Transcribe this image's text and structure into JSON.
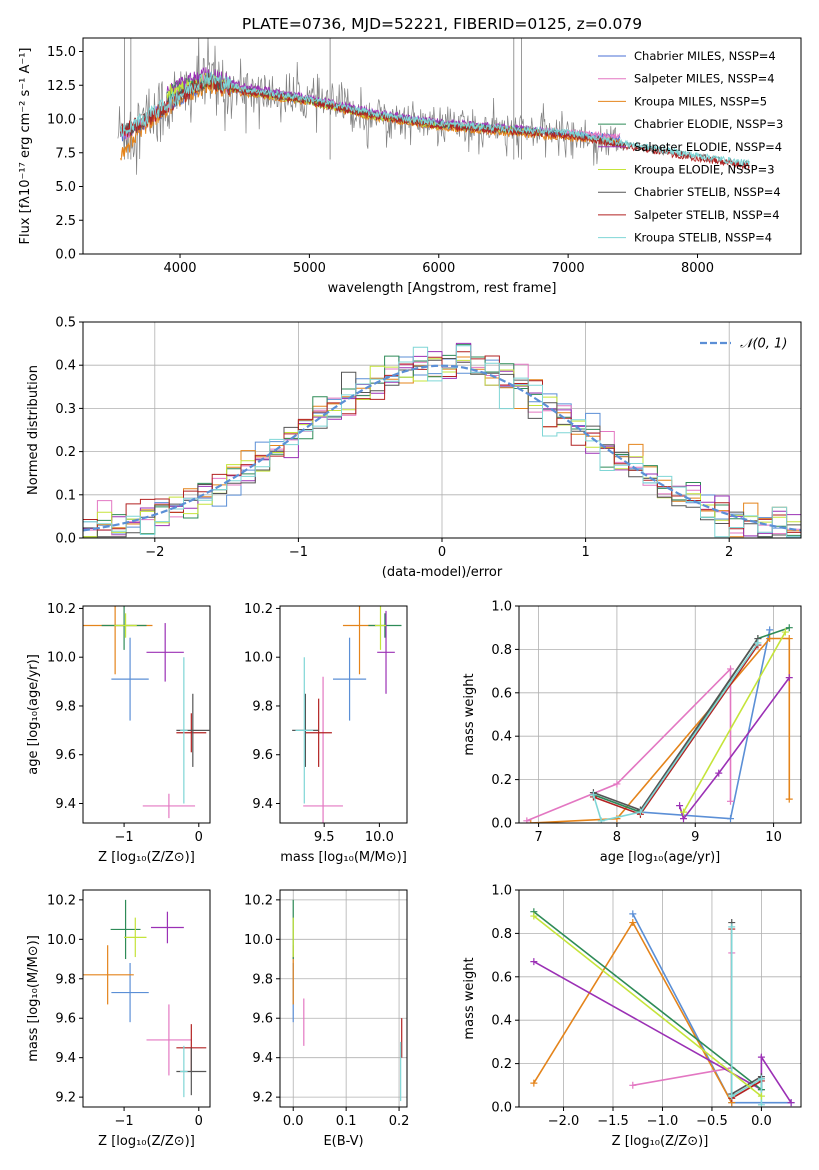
{
  "chart_data": [
    {
      "type": "line",
      "title": "PLATE=0736, MJD=52221, FIBERID=0125, z=0.079",
      "xlabel": "wavelength [Angstrom, rest frame]",
      "ylabel": "Flux [fλ10⁻¹⁷ erg cm⁻² s⁻¹ A⁻¹]",
      "xlim": [
        3250,
        8800
      ],
      "ylim": [
        0,
        16
      ],
      "xticks": [
        4000,
        5000,
        6000,
        7000,
        8000
      ],
      "yticks": [
        0.0,
        2.5,
        5.0,
        7.5,
        10.0,
        12.5,
        15.0
      ],
      "grid": false,
      "legend_position": "top-right",
      "series": [
        {
          "name": "Chabrier MILES, NSSP=4",
          "color": "#4a6fd6",
          "x": [
            3540,
            3700,
            4000,
            4200,
            4500,
            5000,
            5500,
            6000,
            6500,
            7000,
            7400
          ],
          "y": [
            8.8,
            9.5,
            11.6,
            12.8,
            12.0,
            11.3,
            10.2,
            9.5,
            9.2,
            8.9,
            8.6
          ]
        },
        {
          "name": "Salpeter MILES, NSSP=4",
          "color": "#e377c2",
          "x": [
            3540,
            3700,
            4000,
            4200,
            4500,
            5000,
            5500,
            6000,
            6500,
            7000,
            7400
          ],
          "y": [
            8.8,
            9.6,
            11.8,
            13.0,
            12.2,
            11.5,
            10.4,
            9.7,
            9.3,
            9.0,
            8.7
          ]
        },
        {
          "name": "Kroupa MILES, NSSP=5",
          "color": "#e4841b",
          "x": [
            3540,
            3700,
            4000,
            4200,
            4500,
            5000,
            5500,
            6000,
            6500,
            7000,
            7400
          ],
          "y": [
            7.2,
            9.2,
            11.5,
            12.5,
            11.9,
            11.2,
            10.1,
            9.4,
            9.0,
            8.6,
            8.3
          ]
        },
        {
          "name": "Chabrier ELODIE, NSSP=3",
          "color": "#2e8b57",
          "x": [
            3900,
            4200,
            4500,
            5000,
            5500,
            6000,
            6500,
            6800
          ],
          "y": [
            12.0,
            12.9,
            12.1,
            11.4,
            10.3,
            9.6,
            9.3,
            9.1
          ]
        },
        {
          "name": "Salpeter ELODIE, NSSP=4",
          "color": "#9b30b5",
          "x": [
            3900,
            4200,
            4500,
            5000,
            5500,
            6000,
            6500,
            6800
          ],
          "y": [
            12.1,
            13.3,
            12.4,
            11.6,
            10.5,
            9.8,
            9.4,
            9.2
          ]
        },
        {
          "name": "Kroupa ELODIE, NSSP=3",
          "color": "#c5e43a",
          "x": [
            3900,
            4200,
            4500,
            5000,
            5500,
            6000,
            6500,
            6800
          ],
          "y": [
            11.9,
            12.9,
            12.0,
            11.3,
            10.2,
            9.5,
            9.2,
            9.0
          ]
        },
        {
          "name": "Chabrier STELIB, NSSP=4",
          "color": "#555555",
          "x": [
            3540,
            3700,
            4000,
            4200,
            4500,
            5000,
            5500,
            6000,
            6500,
            7000,
            7500,
            8000,
            8400
          ],
          "y": [
            9.0,
            9.7,
            11.7,
            12.9,
            12.1,
            11.4,
            10.3,
            9.6,
            9.2,
            8.9,
            8.0,
            7.2,
            6.6
          ]
        },
        {
          "name": "Salpeter STELIB, NSSP=4",
          "color": "#b22222",
          "x": [
            3540,
            3700,
            4000,
            4200,
            4500,
            5000,
            5500,
            6000,
            6500,
            7000,
            7500,
            8000,
            8400
          ],
          "y": [
            9.0,
            9.7,
            11.6,
            12.8,
            12.0,
            11.3,
            10.2,
            9.5,
            9.1,
            8.8,
            7.9,
            7.1,
            6.5
          ]
        },
        {
          "name": "Kroupa STELIB, NSSP=4",
          "color": "#7fd6d6",
          "x": [
            3540,
            3700,
            4000,
            4200,
            4500,
            5000,
            5500,
            6000,
            6500,
            7000,
            7500,
            8000,
            8400
          ],
          "y": [
            9.1,
            9.8,
            11.8,
            13.1,
            12.2,
            11.5,
            10.4,
            9.7,
            9.3,
            9.0,
            8.1,
            7.3,
            6.7
          ]
        }
      ]
    },
    {
      "type": "line",
      "xlabel": "(data-model)/error",
      "ylabel": "Normed distribution",
      "xlim": [
        -2.5,
        2.5
      ],
      "ylim": [
        0,
        0.5
      ],
      "xticks": [
        -2,
        -1,
        0,
        1,
        2
      ],
      "yticks": [
        0.0,
        0.1,
        0.2,
        0.3,
        0.4,
        0.5
      ],
      "grid": true,
      "legend_position": "top-right",
      "legend": "𝒩(0, 1)",
      "normal_curve": {
        "mean": 0,
        "sigma": 1,
        "color": "#5b8fd6"
      }
    },
    {
      "type": "scatter",
      "xlabel": "Z [log₁₀(Z/Z⊙)]",
      "ylabel": "age  [log₁₀(age/yr)]",
      "xlim": [
        -1.55,
        0.15
      ],
      "ylim": [
        9.32,
        10.21
      ],
      "xticks": [
        -1,
        0
      ],
      "yticks": [
        9.4,
        9.6,
        9.8,
        10.0,
        10.2
      ],
      "points": [
        {
          "x": -0.92,
          "y": 9.91,
          "xerr": 0.25,
          "yerr": 0.17,
          "color": "#5b8fd6"
        },
        {
          "x": -1.12,
          "y": 10.13,
          "xerr": 0.5,
          "yerr": 0.2,
          "color": "#e4841b"
        },
        {
          "x": -1.0,
          "y": 10.13,
          "xerr": 0.3,
          "yerr": 0.1,
          "color": "#2e8b57"
        },
        {
          "x": -0.45,
          "y": 10.02,
          "xerr": 0.25,
          "yerr": 0.12,
          "color": "#9b30b5"
        },
        {
          "x": -0.4,
          "y": 9.39,
          "xerr": 0.35,
          "yerr": 0.05,
          "color": "#e377c2"
        },
        {
          "x": -0.1,
          "y": 9.69,
          "xerr": 0.2,
          "yerr": 0.08,
          "color": "#b22222"
        },
        {
          "x": -0.08,
          "y": 9.7,
          "xerr": 0.22,
          "yerr": 0.15,
          "color": "#555555"
        },
        {
          "x": -0.2,
          "y": 9.7,
          "xerr": 0.05,
          "yerr": 0.3,
          "color": "#7fd6d6"
        },
        {
          "x": -0.98,
          "y": 10.13,
          "xerr": 0.15,
          "yerr": 0.05,
          "color": "#c5e43a"
        }
      ]
    },
    {
      "type": "scatter",
      "xlabel": "mass [log₁₀(M/M⊙)]",
      "ylabel": "",
      "xlim": [
        9.1,
        10.25
      ],
      "ylim": [
        9.32,
        10.21
      ],
      "xticks": [
        9.5,
        10.0
      ],
      "yticks": [
        9.4,
        9.6,
        9.8,
        10.0,
        10.2
      ],
      "points": [
        {
          "x": 9.73,
          "y": 9.91,
          "xerr": 0.15,
          "yerr": 0.17,
          "color": "#5b8fd6"
        },
        {
          "x": 9.82,
          "y": 10.13,
          "xerr": 0.15,
          "yerr": 0.2,
          "color": "#e4841b"
        },
        {
          "x": 10.05,
          "y": 10.13,
          "xerr": 0.15,
          "yerr": 0.05,
          "color": "#2e8b57"
        },
        {
          "x": 10.06,
          "y": 10.02,
          "xerr": 0.08,
          "yerr": 0.17,
          "color": "#9b30b5"
        },
        {
          "x": 9.49,
          "y": 9.39,
          "xerr": 0.18,
          "yerr": 0.53,
          "color": "#e377c2"
        },
        {
          "x": 9.45,
          "y": 9.69,
          "xerr": 0.12,
          "yerr": 0.14,
          "color": "#b22222"
        },
        {
          "x": 9.33,
          "y": 9.7,
          "xerr": 0.12,
          "yerr": 0.15,
          "color": "#555555"
        },
        {
          "x": 9.32,
          "y": 9.7,
          "xerr": 0.08,
          "yerr": 0.3,
          "color": "#7fd6d6"
        },
        {
          "x": 10.01,
          "y": 10.13,
          "xerr": 0.05,
          "yerr": 0.1,
          "color": "#c5e43a"
        }
      ]
    },
    {
      "type": "line",
      "xlabel": "age  [log₁₀(age/yr)]",
      "ylabel": "mass weight",
      "xlim": [
        6.75,
        10.35
      ],
      "ylim": [
        0,
        1.0
      ],
      "xticks": [
        7,
        8,
        9,
        10
      ],
      "yticks": [
        0.0,
        0.2,
        0.4,
        0.6,
        0.8,
        1.0
      ],
      "grid": true,
      "series": [
        {
          "color": "#5b8fd6",
          "x": [
            7.7,
            8.3,
            9.45,
            9.95
          ],
          "y": [
            0.13,
            0.05,
            0.02,
            0.89
          ]
        },
        {
          "color": "#e4841b",
          "x": [
            6.9,
            8.0,
            9.95,
            10.2,
            10.2
          ],
          "y": [
            0.0,
            0.02,
            0.85,
            0.85,
            0.11
          ]
        },
        {
          "color": "#e377c2",
          "x": [
            6.85,
            8.0,
            9.45,
            9.45
          ],
          "y": [
            0.01,
            0.18,
            0.71,
            0.1
          ]
        },
        {
          "color": "#9b30b5",
          "x": [
            8.8,
            8.85,
            9.3,
            10.2
          ],
          "y": [
            0.08,
            0.02,
            0.23,
            0.67
          ]
        },
        {
          "color": "#2e8b57",
          "x": [
            7.7,
            8.3,
            9.8,
            10.2
          ],
          "y": [
            0.13,
            0.05,
            0.85,
            0.9
          ]
        },
        {
          "color": "#b22222",
          "x": [
            7.7,
            8.3,
            9.8
          ],
          "y": [
            0.12,
            0.04,
            0.82
          ]
        },
        {
          "color": "#555555",
          "x": [
            7.7,
            8.3,
            9.8
          ],
          "y": [
            0.14,
            0.06,
            0.85
          ]
        },
        {
          "color": "#7fd6d6",
          "x": [
            7.7,
            7.8,
            8.3,
            9.8
          ],
          "y": [
            0.13,
            0.01,
            0.05,
            0.83
          ]
        },
        {
          "color": "#c5e43a",
          "x": [
            8.85,
            10.15
          ],
          "y": [
            0.05,
            0.88
          ]
        }
      ]
    },
    {
      "type": "scatter",
      "xlabel": "Z [log₁₀(Z/Z⊙)]",
      "ylabel": "mass [log₁₀(M/M⊙)]",
      "xlim": [
        -1.55,
        0.15
      ],
      "ylim": [
        9.15,
        10.25
      ],
      "xticks": [
        -1,
        0
      ],
      "yticks": [
        9.2,
        9.4,
        9.6,
        9.8,
        10.0,
        10.2
      ],
      "points": [
        {
          "x": -0.92,
          "y": 9.73,
          "xerr": 0.25,
          "yerr": 0.15,
          "color": "#5b8fd6"
        },
        {
          "x": -1.22,
          "y": 9.82,
          "xerr": 0.35,
          "yerr": 0.15,
          "color": "#e4841b"
        },
        {
          "x": -0.98,
          "y": 10.05,
          "xerr": 0.2,
          "yerr": 0.15,
          "color": "#2e8b57"
        },
        {
          "x": -0.42,
          "y": 10.06,
          "xerr": 0.22,
          "yerr": 0.08,
          "color": "#9b30b5"
        },
        {
          "x": -0.4,
          "y": 9.49,
          "xerr": 0.3,
          "yerr": 0.18,
          "color": "#e377c2"
        },
        {
          "x": -0.1,
          "y": 9.45,
          "xerr": 0.2,
          "yerr": 0.12,
          "color": "#b22222"
        },
        {
          "x": -0.1,
          "y": 9.33,
          "xerr": 0.2,
          "yerr": 0.12,
          "color": "#555555"
        },
        {
          "x": -0.2,
          "y": 9.33,
          "xerr": 0.05,
          "yerr": 0.13,
          "color": "#7fd6d6"
        },
        {
          "x": -0.85,
          "y": 10.01,
          "xerr": 0.15,
          "yerr": 0.1,
          "color": "#c5e43a"
        }
      ]
    },
    {
      "type": "scatter",
      "xlabel": "E(B-V)",
      "ylabel": "",
      "xlim": [
        -0.025,
        0.215
      ],
      "ylim": [
        9.15,
        10.25
      ],
      "xticks": [
        0.0,
        0.1,
        0.2
      ],
      "yticks": [
        9.2,
        9.4,
        9.6,
        9.8,
        10.0,
        10.2
      ],
      "grid": true,
      "points": [
        {
          "x": 0.0,
          "y": 9.73,
          "xerr": 0,
          "yerr": 0.15,
          "color": "#5b8fd6"
        },
        {
          "x": 0.0,
          "y": 9.82,
          "xerr": 0,
          "yerr": 0.15,
          "color": "#e4841b"
        },
        {
          "x": 0.0,
          "y": 10.05,
          "xerr": 0,
          "yerr": 0.15,
          "color": "#2e8b57"
        },
        {
          "x": 0.0,
          "y": 10.01,
          "xerr": 0,
          "yerr": 0.1,
          "color": "#c5e43a"
        },
        {
          "x": 0.02,
          "y": 9.58,
          "xerr": 0,
          "yerr": 0.12,
          "color": "#e377c2"
        },
        {
          "x": 0.205,
          "y": 9.5,
          "xerr": 0,
          "yerr": 0.1,
          "color": "#b22222"
        },
        {
          "x": 0.203,
          "y": 9.33,
          "xerr": 0,
          "yerr": 0.15,
          "color": "#7fd6d6"
        }
      ]
    },
    {
      "type": "line",
      "xlabel": "Z [log₁₀(Z/Z⊙)]",
      "ylabel": "mass weight",
      "xlim": [
        -2.45,
        0.4
      ],
      "ylim": [
        0,
        1.0
      ],
      "xticks": [
        -2.0,
        -1.5,
        -1.0,
        -0.5,
        0.0
      ],
      "yticks": [
        0.0,
        0.2,
        0.4,
        0.6,
        0.8,
        1.0
      ],
      "grid": true,
      "series": [
        {
          "color": "#5b8fd6",
          "x": [
            -1.3,
            -0.3,
            0.3
          ],
          "y": [
            0.89,
            0.02,
            0.02
          ]
        },
        {
          "color": "#e4841b",
          "x": [
            -2.3,
            -1.3,
            -0.3
          ],
          "y": [
            0.11,
            0.85,
            0.02
          ]
        },
        {
          "color": "#e377c2",
          "x": [
            -1.3,
            -0.3,
            -0.3
          ],
          "y": [
            0.1,
            0.18,
            0.71
          ]
        },
        {
          "color": "#9b30b5",
          "x": [
            -2.3,
            0.0,
            0.0,
            0.3
          ],
          "y": [
            0.67,
            0.08,
            0.23,
            0.02
          ]
        },
        {
          "color": "#2e8b57",
          "x": [
            -2.3,
            0.0,
            0.0
          ],
          "y": [
            0.9,
            0.08,
            0.13
          ]
        },
        {
          "color": "#b22222",
          "x": [
            -0.3,
            -0.3,
            0.0
          ],
          "y": [
            0.82,
            0.04,
            0.12
          ]
        },
        {
          "color": "#555555",
          "x": [
            -0.3,
            -0.3,
            0.0
          ],
          "y": [
            0.85,
            0.06,
            0.14
          ]
        },
        {
          "color": "#7fd6d6",
          "x": [
            -0.3,
            -0.3,
            0.0,
            0.0
          ],
          "y": [
            0.83,
            0.05,
            0.13,
            0.01
          ]
        },
        {
          "color": "#c5e43a",
          "x": [
            -2.3,
            0.0
          ],
          "y": [
            0.88,
            0.05
          ]
        }
      ]
    }
  ]
}
